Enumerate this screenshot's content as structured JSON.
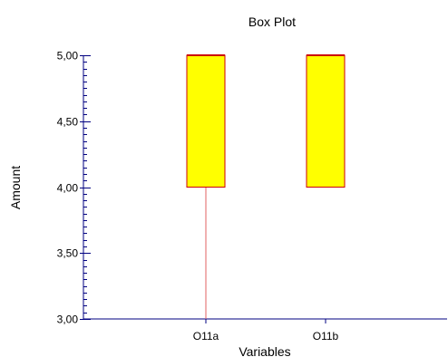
{
  "chart_data": {
    "type": "box",
    "title": "Box Plot",
    "xlabel": "Variables",
    "ylabel": "Amount",
    "ylim": [
      3.0,
      5.0
    ],
    "yticks": [
      3.0,
      3.5,
      4.0,
      4.5,
      5.0
    ],
    "ytick_labels": [
      "3,00",
      "3,50",
      "4,00",
      "4,50",
      "5,00"
    ],
    "categories": [
      "O11a",
      "O11b"
    ],
    "boxes": [
      {
        "name": "O11a",
        "min": 3.0,
        "q1": 4.0,
        "median": 5.0,
        "q3": 5.0,
        "max": 5.0
      },
      {
        "name": "O11b",
        "min": 4.0,
        "q1": 4.0,
        "median": 5.0,
        "q3": 5.0,
        "max": 5.0
      }
    ],
    "grid": false,
    "colors": {
      "box_fill": "#FFFF00",
      "box_edge": "#CC0000",
      "whisker": "#E06060",
      "axis": "#000080"
    }
  }
}
